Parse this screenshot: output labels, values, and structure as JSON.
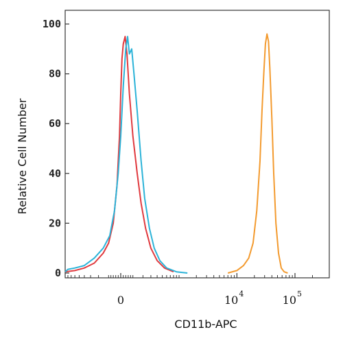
{
  "chart_data": {
    "type": "line",
    "xlabel": "CD11b-APC",
    "ylabel": "Relative Cell Number",
    "ylim": [
      0,
      100
    ],
    "xscale": "biexponential",
    "xlim": [
      -1000,
      200000
    ],
    "yticks": [
      0,
      20,
      40,
      60,
      80,
      100
    ],
    "ytick_labels": [
      "0",
      "20",
      "40",
      "60",
      "80",
      "100"
    ],
    "xticks": [
      {
        "value": 0,
        "label": "0"
      },
      {
        "value": 10000,
        "base": "10",
        "exp": "4"
      },
      {
        "value": 100000,
        "base": "10",
        "exp": "5"
      }
    ],
    "grid": false,
    "legend": "none",
    "series": [
      {
        "color": "#e0393e",
        "points": [
          [
            -900,
            0.5
          ],
          [
            -600,
            1
          ],
          [
            -400,
            2
          ],
          [
            -250,
            4
          ],
          [
            -150,
            8
          ],
          [
            -100,
            12
          ],
          [
            -60,
            20
          ],
          [
            -30,
            35
          ],
          [
            -10,
            55
          ],
          [
            0,
            72
          ],
          [
            10,
            86
          ],
          [
            20,
            92
          ],
          [
            35,
            95
          ],
          [
            50,
            88
          ],
          [
            70,
            72
          ],
          [
            100,
            55
          ],
          [
            140,
            40
          ],
          [
            180,
            28
          ],
          [
            230,
            18
          ],
          [
            300,
            10
          ],
          [
            400,
            5
          ],
          [
            550,
            2
          ],
          [
            800,
            0.5
          ]
        ]
      },
      {
        "color": "#2bb3d8",
        "points": [
          [
            -1000,
            0.5
          ],
          [
            -800,
            1.5
          ],
          [
            -600,
            2
          ],
          [
            -400,
            3
          ],
          [
            -250,
            6
          ],
          [
            -150,
            10
          ],
          [
            -90,
            15
          ],
          [
            -50,
            25
          ],
          [
            -20,
            40
          ],
          [
            0,
            55
          ],
          [
            20,
            75
          ],
          [
            40,
            90
          ],
          [
            55,
            95
          ],
          [
            70,
            88
          ],
          [
            90,
            90
          ],
          [
            110,
            80
          ],
          [
            140,
            65
          ],
          [
            180,
            45
          ],
          [
            220,
            30
          ],
          [
            280,
            18
          ],
          [
            350,
            10
          ],
          [
            450,
            5
          ],
          [
            600,
            2
          ],
          [
            900,
            0.5
          ],
          [
            1400,
            0
          ]
        ]
      },
      {
        "color": "#f39a2e",
        "points": [
          [
            7000,
            0
          ],
          [
            10000,
            1
          ],
          [
            13000,
            3
          ],
          [
            16000,
            6
          ],
          [
            19000,
            12
          ],
          [
            22000,
            25
          ],
          [
            25000,
            45
          ],
          [
            27000,
            65
          ],
          [
            29000,
            80
          ],
          [
            31000,
            92
          ],
          [
            33000,
            96
          ],
          [
            35000,
            93
          ],
          [
            37000,
            82
          ],
          [
            40000,
            62
          ],
          [
            43000,
            40
          ],
          [
            47000,
            20
          ],
          [
            52000,
            8
          ],
          [
            58000,
            2
          ],
          [
            65000,
            0.5
          ],
          [
            75000,
            0
          ]
        ]
      }
    ]
  }
}
